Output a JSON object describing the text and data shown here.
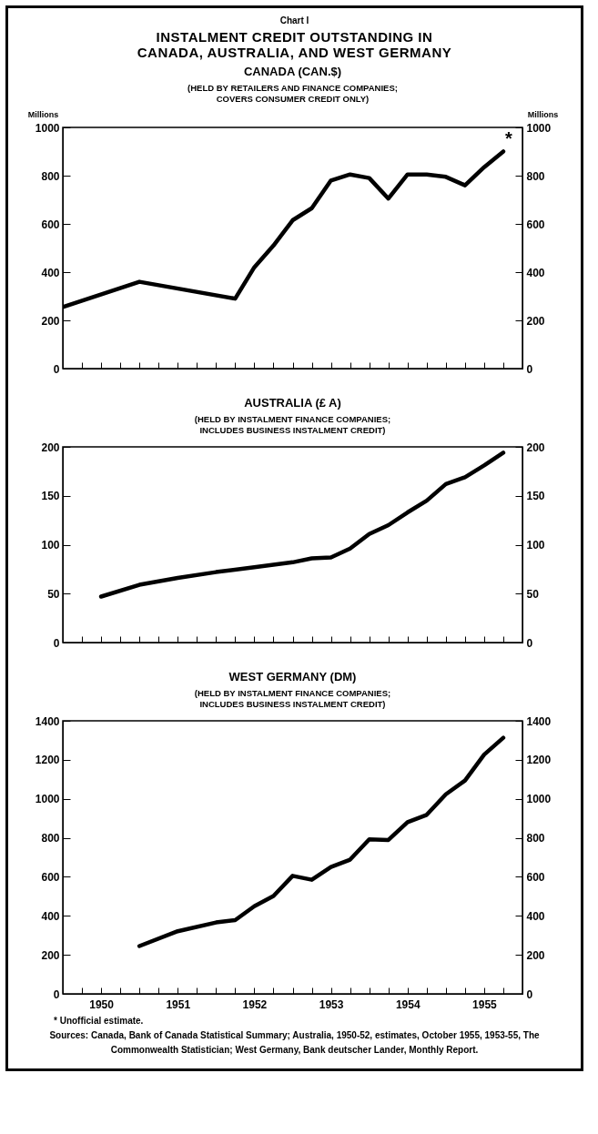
{
  "chart_data": [
    {
      "type": "line",
      "title": "CANADA (CAN.$)",
      "subtitle": "(HELD BY RETAILERS AND FINANCE COMPANIES;\nCOVERS CONSUMER CREDIT ONLY)",
      "ylabel": "Millions",
      "y2label": "Millions",
      "annotations": [
        "Chart I",
        "INSTALMENT CREDIT OUTSTANDING IN\nCANADA, AUSTRALIA, AND WEST GERMANY",
        {
          "text": "*",
          "x": 1955.75,
          "y": 900
        }
      ],
      "x": [
        1950,
        1951,
        1952.25,
        1952.5,
        1952.75,
        1953,
        1953.25,
        1953.5,
        1953.75,
        1954,
        1954.25,
        1954.5,
        1954.75,
        1955,
        1955.25,
        1955.5,
        1955.75
      ],
      "series": [
        {
          "color": "#000000",
          "values": [
            255,
            360,
            290,
            420,
            510,
            615,
            665,
            780,
            805,
            790,
            705,
            805,
            805,
            795,
            760,
            835,
            900
          ]
        }
      ],
      "xlim": [
        1950,
        1956
      ],
      "xticks": [
        {
          "value": 1950.25,
          "label": null
        },
        {
          "value": 1950.5,
          "label": null
        },
        {
          "value": 1950.75,
          "label": null
        },
        {
          "value": 1951,
          "label": null
        },
        {
          "value": 1951.25,
          "label": null
        },
        {
          "value": 1951.5,
          "label": null
        },
        {
          "value": 1951.75,
          "label": null
        },
        {
          "value": 1952,
          "label": null
        },
        {
          "value": 1952.25,
          "label": null
        },
        {
          "value": 1952.5,
          "label": null
        },
        {
          "value": 1952.75,
          "label": null
        },
        {
          "value": 1953,
          "label": null
        },
        {
          "value": 1953.25,
          "label": null
        },
        {
          "value": 1953.5,
          "label": null
        },
        {
          "value": 1953.75,
          "label": null
        },
        {
          "value": 1954,
          "label": null
        },
        {
          "value": 1954.25,
          "label": null
        },
        {
          "value": 1954.5,
          "label": null
        },
        {
          "value": 1954.75,
          "label": null
        },
        {
          "value": 1955,
          "label": null
        },
        {
          "value": 1955.25,
          "label": null
        },
        {
          "value": 1955.5,
          "label": null
        },
        {
          "value": 1955.75,
          "label": null
        }
      ],
      "ylim": [
        0,
        1000
      ],
      "yticks": [
        0,
        200,
        400,
        600,
        800,
        1000
      ],
      "y2lim": [
        0,
        1000
      ],
      "y2ticks": [
        0,
        200,
        400,
        600,
        800,
        1000
      ],
      "tick_labels": "y"
    },
    {
      "type": "line",
      "title": "AUSTRALIA (£ A)",
      "subtitle": "(HELD BY INSTALMENT FINANCE COMPANIES;\nINCLUDES BUSINESS INSTALMENT CREDIT)",
      "x": [
        1950.5,
        1951,
        1951.5,
        1952,
        1952.5,
        1953,
        1953.25,
        1953.5,
        1953.75,
        1954,
        1954.25,
        1954.5,
        1954.75,
        1955,
        1955.25,
        1955.5,
        1955.75
      ],
      "series": [
        {
          "color": "#000000",
          "values": [
            47,
            59,
            66,
            72,
            77,
            82,
            86,
            87,
            96,
            111,
            120,
            133,
            145,
            162,
            169,
            181,
            194
          ]
        }
      ],
      "xlim": [
        1950,
        1956
      ],
      "xticks": [
        {
          "value": 1950.25,
          "label": null
        },
        {
          "value": 1950.5,
          "label": null
        },
        {
          "value": 1950.75,
          "label": null
        },
        {
          "value": 1951,
          "label": null
        },
        {
          "value": 1951.25,
          "label": null
        },
        {
          "value": 1951.5,
          "label": null
        },
        {
          "value": 1951.75,
          "label": null
        },
        {
          "value": 1952,
          "label": null
        },
        {
          "value": 1952.25,
          "label": null
        },
        {
          "value": 1952.5,
          "label": null
        },
        {
          "value": 1952.75,
          "label": null
        },
        {
          "value": 1953,
          "label": null
        },
        {
          "value": 1953.25,
          "label": null
        },
        {
          "value": 1953.5,
          "label": null
        },
        {
          "value": 1953.75,
          "label": null
        },
        {
          "value": 1954,
          "label": null
        },
        {
          "value": 1954.25,
          "label": null
        },
        {
          "value": 1954.5,
          "label": null
        },
        {
          "value": 1954.75,
          "label": null
        },
        {
          "value": 1955,
          "label": null
        },
        {
          "value": 1955.25,
          "label": null
        },
        {
          "value": 1955.5,
          "label": null
        },
        {
          "value": 1955.75,
          "label": null
        }
      ],
      "ylim": [
        0,
        200
      ],
      "yticks": [
        0,
        50,
        100,
        150,
        200
      ],
      "y2lim": [
        0,
        200
      ],
      "y2ticks": [
        0,
        50,
        100,
        150,
        200
      ],
      "tick_labels": "y"
    },
    {
      "type": "line",
      "title": "WEST GERMANY (DM)",
      "subtitle": "(HELD BY INSTALMENT FINANCE COMPANIES;\nINCLUDES BUSINESS INSTALMENT CREDIT)",
      "annotations": [
        "* Unofficial estimate.",
        "Sources: Canada, Bank of Canada Statistical Summary; Australia, 1950-52, estimates, October 1955, 1953-55, The Commonwealth Statistician; West Germany, Bank deutscher Lander, Monthly Report."
      ],
      "x": [
        1951,
        1951.5,
        1952,
        1952.25,
        1952.5,
        1952.75,
        1953,
        1953.25,
        1953.5,
        1953.75,
        1954,
        1954.25,
        1954.5,
        1954.75,
        1955,
        1955.25,
        1955.5,
        1955.75
      ],
      "series": [
        {
          "color": "#000000",
          "values": [
            245,
            321,
            366,
            378,
            449,
            502,
            605,
            585,
            650,
            688,
            792,
            789,
            880,
            918,
            1023,
            1094,
            1227,
            1313
          ]
        }
      ],
      "xlim": [
        1950,
        1956
      ],
      "xticks": [
        {
          "value": 1950.25,
          "label": null
        },
        {
          "value": 1950.5,
          "label": "1950"
        },
        {
          "value": 1950.75,
          "label": null
        },
        {
          "value": 1951,
          "label": null
        },
        {
          "value": 1951.25,
          "label": null
        },
        {
          "value": 1951.5,
          "label": "1951"
        },
        {
          "value": 1951.75,
          "label": null
        },
        {
          "value": 1952,
          "label": null
        },
        {
          "value": 1952.25,
          "label": null
        },
        {
          "value": 1952.5,
          "label": "1952"
        },
        {
          "value": 1952.75,
          "label": null
        },
        {
          "value": 1953,
          "label": null
        },
        {
          "value": 1953.25,
          "label": null
        },
        {
          "value": 1953.5,
          "label": "1953"
        },
        {
          "value": 1953.75,
          "label": null
        },
        {
          "value": 1954,
          "label": null
        },
        {
          "value": 1954.25,
          "label": null
        },
        {
          "value": 1954.5,
          "label": "1954"
        },
        {
          "value": 1954.75,
          "label": null
        },
        {
          "value": 1955,
          "label": null
        },
        {
          "value": 1955.25,
          "label": null
        },
        {
          "value": 1955.5,
          "label": "1955"
        },
        {
          "value": 1955.75,
          "label": null
        }
      ],
      "ylim": [
        0,
        1400
      ],
      "yticks": [
        0,
        200,
        400,
        600,
        800,
        1000,
        1200,
        1400
      ],
      "y2lim": [
        0,
        1400
      ],
      "y2ticks": [
        0,
        200,
        400,
        600,
        800,
        1000,
        1200,
        1400
      ]
    }
  ]
}
